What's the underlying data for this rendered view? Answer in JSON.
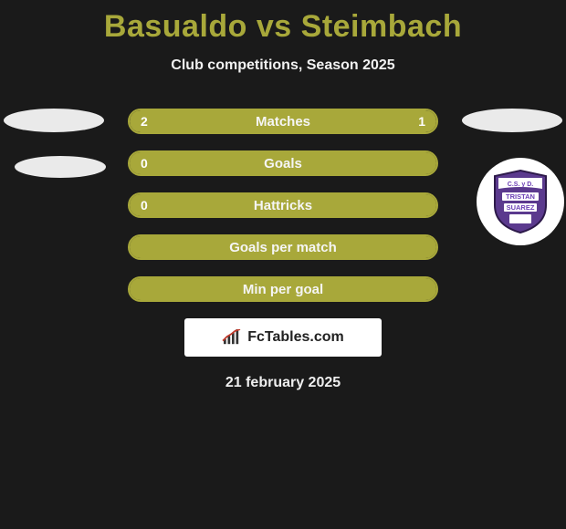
{
  "title": "Basualdo vs Steimbach",
  "subtitle": "Club competitions, Season 2025",
  "bars": [
    {
      "label": "Matches",
      "left": "2",
      "right": "1",
      "leftFillPct": 66,
      "rightFillPct": 34,
      "mode": "split"
    },
    {
      "label": "Goals",
      "left": "0",
      "right": "",
      "leftFillPct": 100,
      "rightFillPct": 0,
      "mode": "full"
    },
    {
      "label": "Hattricks",
      "left": "0",
      "right": "",
      "leftFillPct": 100,
      "rightFillPct": 0,
      "mode": "full"
    },
    {
      "label": "Goals per match",
      "left": "",
      "right": "",
      "leftFillPct": 100,
      "rightFillPct": 0,
      "mode": "full"
    },
    {
      "label": "Min per goal",
      "left": "",
      "right": "",
      "leftFillPct": 100,
      "rightFillPct": 0,
      "mode": "full"
    }
  ],
  "branding": "FcTables.com",
  "date": "21 february 2025",
  "colors": {
    "accent": "#a8a83a",
    "background": "#1a1a1a",
    "text": "#ffffff",
    "brandBg": "#ffffff",
    "brandText": "#222222",
    "shieldPurple": "#5b3a8e",
    "shieldWhite": "#ffffff",
    "shieldText": "#6b3fb5"
  },
  "club": {
    "name": "Tristan Suarez",
    "topText": "C.S. y D.",
    "midText": "TRISTAN",
    "botText": "SUAREZ"
  }
}
